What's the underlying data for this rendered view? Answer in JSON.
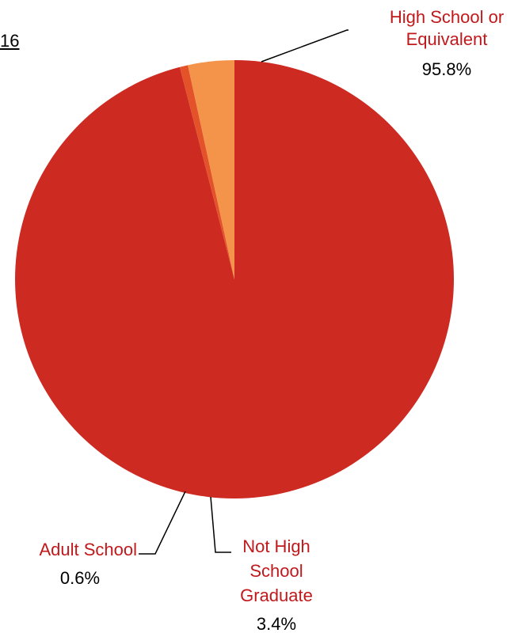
{
  "chart_data": {
    "type": "pie",
    "title_fragment": "16",
    "slices": [
      {
        "name_lines": [
          "High School or",
          "Equivalent"
        ],
        "value": 95.8,
        "value_label": "95.8%",
        "color": "#cd2a22"
      },
      {
        "name_lines": [
          "Adult School"
        ],
        "value": 0.6,
        "value_label": "0.6%",
        "color": "#e4522a"
      },
      {
        "name_lines": [
          "Not High",
          "School",
          "Graduate"
        ],
        "value": 3.4,
        "value_label": "3.4%",
        "color": "#f3944a"
      }
    ],
    "label_color": "#c0191c",
    "value_color": "#000000",
    "leader_color": "#000000"
  }
}
